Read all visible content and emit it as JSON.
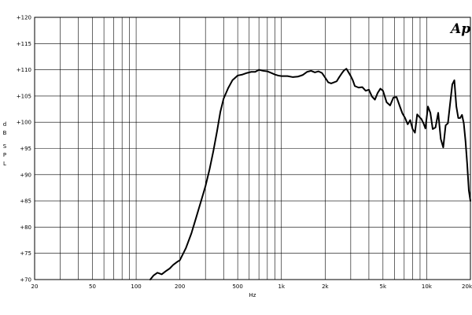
{
  "chart_data": {
    "type": "line",
    "title": "",
    "xlabel": "Hz",
    "ylabel_letters": [
      "d",
      "B",
      "S",
      "P",
      "L"
    ],
    "x_scale": "log",
    "xlim": [
      20,
      20000
    ],
    "ylim": [
      70,
      120
    ],
    "grid": true,
    "logo": "Ap",
    "x_major_ticks": [
      {
        "value": 20,
        "label": "20"
      },
      {
        "value": 50,
        "label": "50"
      },
      {
        "value": 100,
        "label": "100"
      },
      {
        "value": 200,
        "label": "200"
      },
      {
        "value": 500,
        "label": "500"
      },
      {
        "value": 1000,
        "label": "1k"
      },
      {
        "value": 2000,
        "label": "2k"
      },
      {
        "value": 5000,
        "label": "5k"
      },
      {
        "value": 10000,
        "label": "10k"
      },
      {
        "value": 20000,
        "label": "20k"
      }
    ],
    "x_minor_ticks": [
      30,
      40,
      60,
      70,
      80,
      90,
      300,
      400,
      600,
      700,
      800,
      900,
      3000,
      4000,
      6000,
      7000,
      8000,
      9000
    ],
    "y_ticks": [
      {
        "value": 70,
        "label": "+70"
      },
      {
        "value": 75,
        "label": "+75"
      },
      {
        "value": 80,
        "label": "+80"
      },
      {
        "value": 85,
        "label": "+85"
      },
      {
        "value": 90,
        "label": "+90"
      },
      {
        "value": 95,
        "label": "+95"
      },
      {
        "value": 100,
        "label": "+100"
      },
      {
        "value": 105,
        "label": "+105"
      },
      {
        "value": 110,
        "label": "+110"
      },
      {
        "value": 115,
        "label": "+115"
      },
      {
        "value": 120,
        "label": "+120"
      }
    ],
    "series": [
      {
        "color": "#000000",
        "x": [
          125,
          132,
          140,
          150,
          160,
          170,
          180,
          190,
          200,
          220,
          240,
          260,
          280,
          300,
          320,
          340,
          360,
          380,
          400,
          430,
          460,
          500,
          540,
          580,
          620,
          660,
          700,
          750,
          800,
          850,
          900,
          950,
          1000,
          1100,
          1200,
          1300,
          1400,
          1500,
          1600,
          1700,
          1800,
          1900,
          2000,
          2100,
          2200,
          2300,
          2400,
          2500,
          2600,
          2700,
          2800,
          2900,
          3000,
          3100,
          3200,
          3400,
          3600,
          3800,
          4000,
          4200,
          4400,
          4600,
          4800,
          5000,
          5300,
          5600,
          5900,
          6200,
          6500,
          6800,
          7100,
          7400,
          7700,
          8000,
          8300,
          8600,
          8900,
          9200,
          9500,
          9800,
          10200,
          10600,
          11000,
          11500,
          12000,
          12500,
          13000,
          13500,
          14000,
          14500,
          15000,
          15500,
          16000,
          16500,
          17000,
          17500,
          18000,
          18500,
          19000,
          19500,
          20000
        ],
        "y": [
          70.0,
          70.8,
          71.3,
          71.0,
          71.6,
          72.1,
          72.8,
          73.3,
          73.7,
          76.0,
          78.8,
          82.0,
          85.0,
          87.8,
          91.0,
          94.5,
          98.2,
          102.0,
          104.5,
          106.5,
          108.0,
          108.9,
          109.1,
          109.4,
          109.6,
          109.6,
          110.0,
          109.8,
          109.7,
          109.4,
          109.1,
          108.9,
          108.8,
          108.8,
          108.6,
          108.7,
          109.0,
          109.6,
          109.8,
          109.5,
          109.7,
          109.4,
          108.5,
          107.6,
          107.4,
          107.6,
          107.8,
          108.6,
          109.3,
          109.9,
          110.2,
          109.5,
          108.8,
          108.0,
          106.9,
          106.6,
          106.7,
          106.0,
          106.2,
          104.9,
          104.3,
          105.6,
          106.4,
          106.0,
          103.8,
          103.2,
          104.7,
          104.8,
          103.2,
          101.7,
          100.8,
          99.6,
          100.4,
          98.7,
          98.0,
          101.5,
          101.0,
          100.6,
          99.8,
          98.8,
          103.0,
          101.8,
          98.7,
          99.0,
          101.8,
          96.8,
          95.2,
          99.4,
          99.8,
          103.6,
          107.2,
          108.0,
          103.0,
          100.8,
          100.8,
          101.4,
          99.8,
          96.4,
          92.0,
          87.0,
          85.0
        ]
      }
    ]
  }
}
